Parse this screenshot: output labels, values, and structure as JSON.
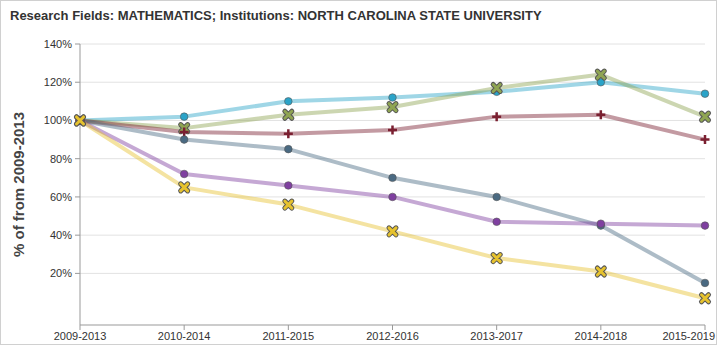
{
  "chart_data": {
    "type": "line",
    "title": "Research Fields: MATHEMATICS; Institutions: NORTH CAROLINA STATE UNIVERSITY",
    "y_label": "% of from 2009-2013",
    "categories": [
      "2009-2013",
      "2010-2014",
      "2011-2015",
      "2012-2016",
      "2013-2017",
      "2014-2018",
      "2015-2019"
    ],
    "ylim": [
      -7,
      140
    ],
    "yticks": [
      {
        "value": 20,
        "label": "20%"
      },
      {
        "value": 40,
        "label": "40%"
      },
      {
        "value": 60,
        "label": "60%"
      },
      {
        "value": 80,
        "label": "80%"
      },
      {
        "value": 100,
        "label": "100%"
      },
      {
        "value": 120,
        "label": "120%"
      },
      {
        "value": 140,
        "label": "140%"
      }
    ],
    "grid": true,
    "series": [
      {
        "color": "#2aa3c8",
        "marker": "circle",
        "values": [
          100,
          102,
          110,
          112,
          115,
          120,
          114
        ]
      },
      {
        "color": "#8fa552",
        "marker": "x",
        "values": [
          100,
          96,
          103,
          107,
          117,
          124,
          102
        ]
      },
      {
        "color": "#7a1f30",
        "marker": "plus",
        "values": [
          100,
          94,
          93,
          95,
          102,
          103,
          90
        ]
      },
      {
        "color": "#4a6a82",
        "marker": "circle",
        "values": [
          100,
          90,
          85,
          70,
          60,
          45,
          15
        ]
      },
      {
        "color": "#7f3fa0",
        "marker": "circle",
        "values": [
          100,
          72,
          66,
          60,
          47,
          46,
          45
        ]
      },
      {
        "color": "#e6c22e",
        "marker": "x",
        "values": [
          100,
          65,
          56,
          42,
          28,
          21,
          7
        ]
      }
    ]
  }
}
